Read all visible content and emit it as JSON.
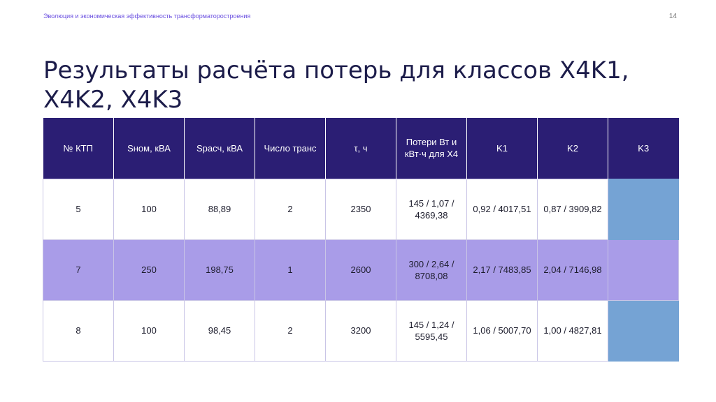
{
  "header": {
    "text": "Эволюция и экономическая эффективность трансформаторостроения",
    "page_number": "14"
  },
  "title": "Результаты расчёта потерь для классов X4K1, X4K2, X4K3",
  "table": {
    "headers": [
      "№ КТП",
      "Sном, кВА",
      "Sрасч, кВА",
      "Число транс",
      "τ, ч",
      "Потери Вт и кВт·ч для X4",
      "K1",
      "K2",
      "K3"
    ],
    "rows": [
      [
        "5",
        "100",
        "88,89",
        "2",
        "2350",
        "145 / 1,07 / 4369,38",
        "0,92 / 4017,51",
        "0,87 / 3909,82",
        ""
      ],
      [
        "7",
        "250",
        "198,75",
        "1",
        "2600",
        "300 / 2,64 / 8708,08",
        "2,17 / 7483,85",
        "2,04 / 7146,98",
        ""
      ],
      [
        "8",
        "100",
        "98,45",
        "2",
        "3200",
        "145 / 1,24 / 5595,45",
        "1,06 / 5007,70",
        "1,00 / 4827,81",
        ""
      ]
    ]
  },
  "colors": {
    "header_bg": "#2b1e74",
    "alt_row_bg": "#a99ce8",
    "k3_column_bg": "#75a3d4",
    "title_color": "#1c1c4a",
    "header_text_color": "#6a4fe0"
  }
}
